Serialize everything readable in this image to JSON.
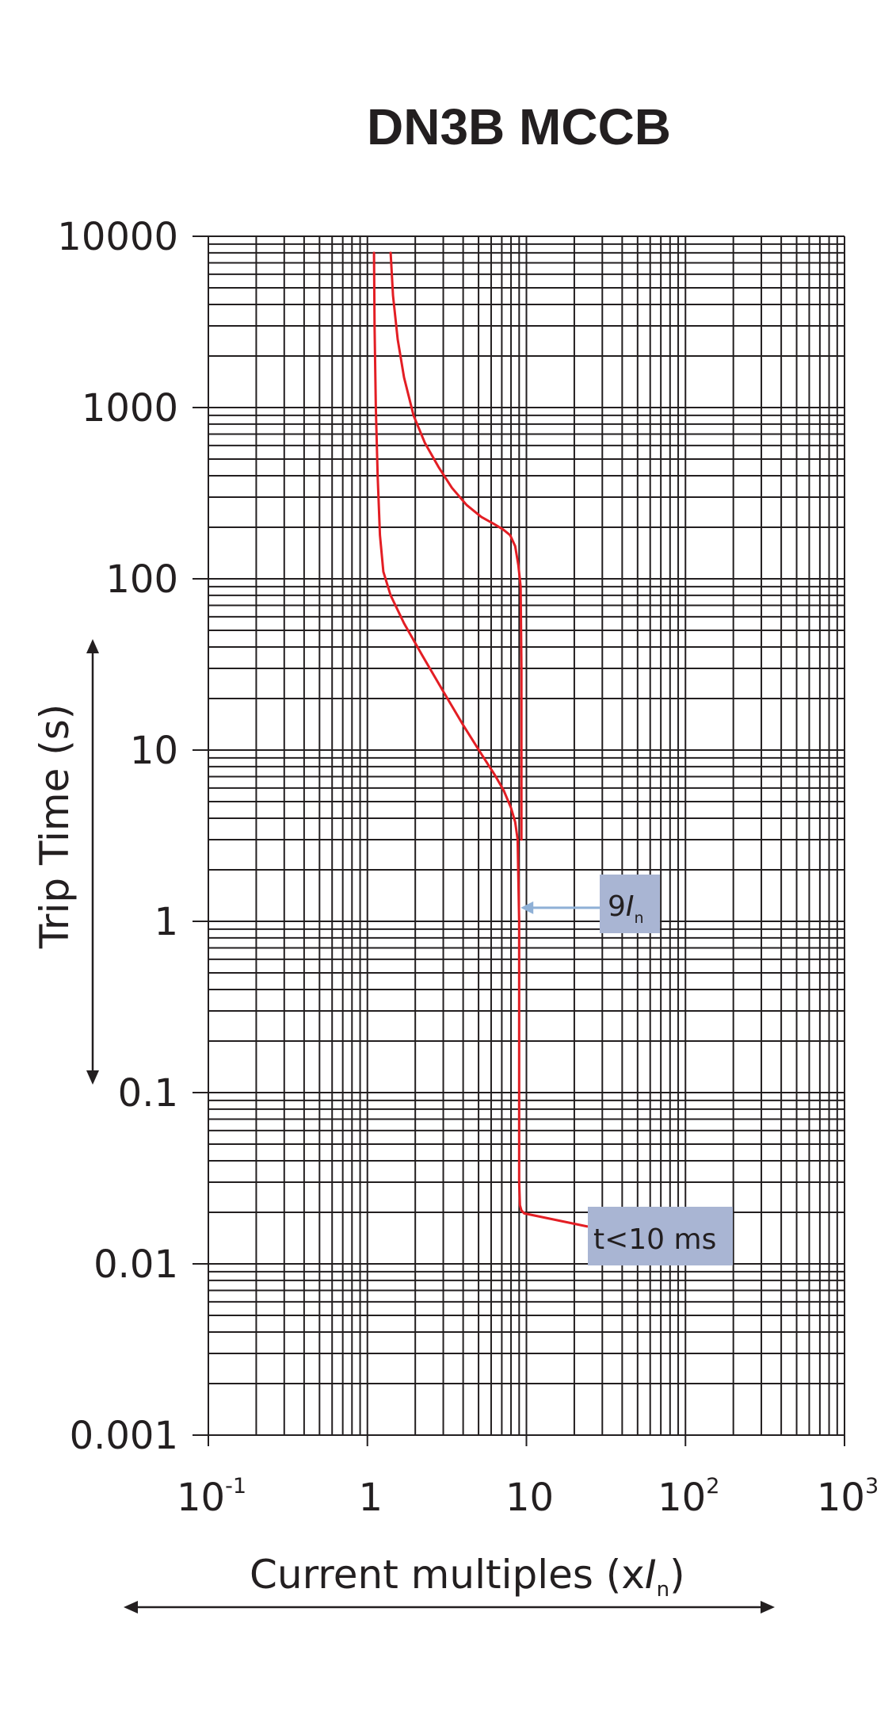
{
  "colors": {
    "grid": "#231f20",
    "curve": "#e31e24",
    "annotation_box": "#a9b5d3",
    "annotation_arrow": "#8fb0d6",
    "text": "#231f20"
  },
  "chart_data": {
    "type": "line",
    "title": "DN3B MCCB",
    "ylabel": "Trip Time (s)",
    "xlabel_main": "Current multiples (x",
    "xlabel_italic": "I",
    "xlabel_sub": "n",
    "xlabel_close": ")",
    "x_scale": "log",
    "y_scale": "log",
    "xlim": [
      0.1,
      1000
    ],
    "ylim": [
      0.001,
      10000
    ],
    "grid": true,
    "y_ticks": [
      {
        "value": 10000,
        "label": "10000"
      },
      {
        "value": 1000,
        "label": "1000"
      },
      {
        "value": 100,
        "label": "100"
      },
      {
        "value": 10,
        "label": "10"
      },
      {
        "value": 1,
        "label": "1"
      },
      {
        "value": 0.1,
        "label": "0.1"
      },
      {
        "value": 0.01,
        "label": "0.01"
      },
      {
        "value": 0.001,
        "label": "0.001"
      }
    ],
    "x_ticks": [
      {
        "value": 0.1,
        "base": "10",
        "sup": "-1"
      },
      {
        "value": 1,
        "base": "1",
        "sup": ""
      },
      {
        "value": 10,
        "base": "10",
        "sup": ""
      },
      {
        "value": 100,
        "base": "10",
        "sup": "2"
      },
      {
        "value": 1000,
        "base": "10",
        "sup": "3"
      }
    ],
    "series": [
      {
        "points": [
          [
            1.1,
            8000
          ],
          [
            1.11,
            3000
          ],
          [
            1.13,
            1000
          ],
          [
            1.16,
            400
          ],
          [
            1.2,
            180
          ],
          [
            1.26,
            110
          ],
          [
            1.4,
            80
          ],
          [
            1.7,
            55
          ],
          [
            2.2,
            36
          ],
          [
            3,
            22
          ],
          [
            4,
            14
          ],
          [
            5.2,
            9.5
          ],
          [
            6.3,
            7.2
          ],
          [
            7.2,
            5.8
          ],
          [
            8,
            4.6
          ],
          [
            8.5,
            3.8
          ],
          [
            8.8,
            3
          ],
          [
            9,
            1
          ],
          [
            9,
            0.1
          ],
          [
            9,
            0.03
          ],
          [
            9.1,
            0.022
          ],
          [
            9.3,
            0.0205
          ],
          [
            9.7,
            0.0197
          ]
        ]
      },
      {
        "points": [
          [
            1.4,
            8000
          ],
          [
            1.45,
            4500
          ],
          [
            1.55,
            2500
          ],
          [
            1.7,
            1500
          ],
          [
            1.95,
            900
          ],
          [
            2.3,
            620
          ],
          [
            2.8,
            450
          ],
          [
            3.4,
            340
          ],
          [
            4.2,
            270
          ],
          [
            5.2,
            230
          ],
          [
            6.2,
            210
          ],
          [
            7.1,
            195
          ],
          [
            7.9,
            180
          ],
          [
            8.5,
            155
          ],
          [
            8.9,
            120
          ],
          [
            9.2,
            90
          ],
          [
            9.3,
            30
          ],
          [
            9.3,
            5
          ],
          [
            9.3,
            3
          ]
        ]
      }
    ],
    "annotations": [
      {
        "text": "9",
        "italic": "I",
        "sub": "n",
        "points_to": [
          9.2,
          1.2
        ]
      },
      {
        "text": "t<10 ms",
        "points_to": [
          9.7,
          0.0197
        ]
      }
    ]
  }
}
